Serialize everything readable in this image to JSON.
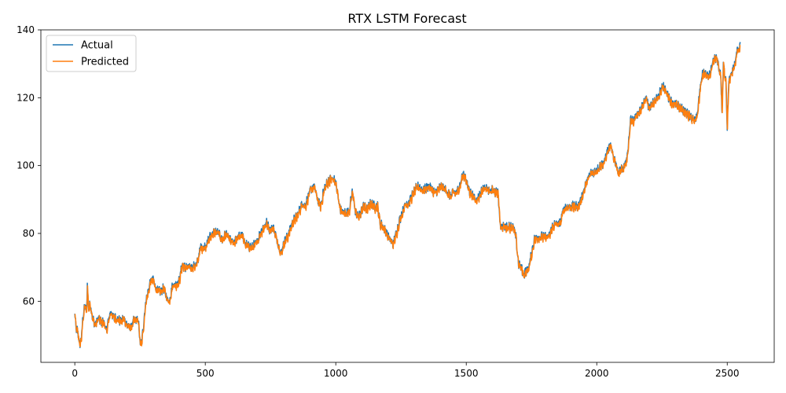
{
  "chart_data": {
    "type": "line",
    "title": "RTX LSTM Forecast",
    "xlabel": "",
    "ylabel": "",
    "xlim": [
      -130,
      2680
    ],
    "ylim": [
      42,
      140
    ],
    "xticks": [
      0,
      500,
      1000,
      1500,
      2000,
      2500
    ],
    "yticks": [
      60,
      80,
      100,
      120,
      140
    ],
    "grid": false,
    "legend_position": "top-left",
    "keypoints": [
      [
        0,
        56
      ],
      [
        5,
        52
      ],
      [
        12,
        51
      ],
      [
        18,
        47
      ],
      [
        25,
        49
      ],
      [
        32,
        56
      ],
      [
        40,
        59
      ],
      [
        45,
        56
      ],
      [
        48,
        65.5
      ],
      [
        52,
        58
      ],
      [
        60,
        59
      ],
      [
        68,
        55
      ],
      [
        78,
        53
      ],
      [
        90,
        55
      ],
      [
        100,
        54
      ],
      [
        112,
        54
      ],
      [
        120,
        51
      ],
      [
        128,
        54
      ],
      [
        138,
        57
      ],
      [
        150,
        55
      ],
      [
        162,
        55
      ],
      [
        175,
        54
      ],
      [
        188,
        55
      ],
      [
        200,
        53
      ],
      [
        212,
        52
      ],
      [
        225,
        54
      ],
      [
        238,
        55
      ],
      [
        245,
        53
      ],
      [
        250,
        48
      ],
      [
        255,
        47
      ],
      [
        262,
        52
      ],
      [
        272,
        60
      ],
      [
        282,
        63
      ],
      [
        290,
        66
      ],
      [
        300,
        66.5
      ],
      [
        310,
        64
      ],
      [
        318,
        63
      ],
      [
        330,
        63
      ],
      [
        340,
        64
      ],
      [
        352,
        61
      ],
      [
        362,
        60
      ],
      [
        375,
        65
      ],
      [
        388,
        65
      ],
      [
        400,
        66
      ],
      [
        412,
        71
      ],
      [
        420,
        70
      ],
      [
        435,
        70
      ],
      [
        450,
        70
      ],
      [
        468,
        71
      ],
      [
        482,
        76
      ],
      [
        498,
        76
      ],
      [
        512,
        78
      ],
      [
        525,
        80
      ],
      [
        540,
        80.5
      ],
      [
        552,
        80
      ],
      [
        565,
        78
      ],
      [
        580,
        80
      ],
      [
        595,
        78
      ],
      [
        610,
        77
      ],
      [
        625,
        79
      ],
      [
        640,
        80
      ],
      [
        652,
        77
      ],
      [
        665,
        76
      ],
      [
        680,
        76
      ],
      [
        695,
        77
      ],
      [
        710,
        80
      ],
      [
        725,
        82
      ],
      [
        735,
        83
      ],
      [
        748,
        81
      ],
      [
        760,
        82
      ],
      [
        775,
        78
      ],
      [
        790,
        74
      ],
      [
        800,
        77
      ],
      [
        815,
        79
      ],
      [
        828,
        82
      ],
      [
        840,
        84
      ],
      [
        852,
        85
      ],
      [
        862,
        87
      ],
      [
        872,
        89
      ],
      [
        882,
        88
      ],
      [
        895,
        91
      ],
      [
        905,
        93
      ],
      [
        918,
        94
      ],
      [
        930,
        90
      ],
      [
        942,
        88
      ],
      [
        955,
        93
      ],
      [
        968,
        95
      ],
      [
        980,
        96
      ],
      [
        992,
        96
      ],
      [
        1000,
        95
      ],
      [
        1008,
        91
      ],
      [
        1018,
        87
      ],
      [
        1028,
        86
      ],
      [
        1040,
        86
      ],
      [
        1052,
        87
      ],
      [
        1062,
        92
      ],
      [
        1068,
        91
      ],
      [
        1075,
        86
      ],
      [
        1085,
        85
      ],
      [
        1095,
        86
      ],
      [
        1105,
        88
      ],
      [
        1120,
        87
      ],
      [
        1135,
        89
      ],
      [
        1148,
        88
      ],
      [
        1160,
        88
      ],
      [
        1170,
        83
      ],
      [
        1180,
        82
      ],
      [
        1190,
        81
      ],
      [
        1200,
        79
      ],
      [
        1210,
        78
      ],
      [
        1220,
        77
      ],
      [
        1232,
        80
      ],
      [
        1245,
        84
      ],
      [
        1258,
        87
      ],
      [
        1268,
        89
      ],
      [
        1280,
        89
      ],
      [
        1292,
        91
      ],
      [
        1305,
        93
      ],
      [
        1318,
        94
      ],
      [
        1330,
        93
      ],
      [
        1342,
        93
      ],
      [
        1355,
        94
      ],
      [
        1368,
        93
      ],
      [
        1380,
        92
      ],
      [
        1392,
        93
      ],
      [
        1405,
        94
      ],
      [
        1418,
        93
      ],
      [
        1430,
        92
      ],
      [
        1440,
        91
      ],
      [
        1450,
        92
      ],
      [
        1462,
        92
      ],
      [
        1475,
        94
      ],
      [
        1485,
        97
      ],
      [
        1495,
        97
      ],
      [
        1505,
        94
      ],
      [
        1515,
        92
      ],
      [
        1525,
        91
      ],
      [
        1538,
        90
      ],
      [
        1550,
        91
      ],
      [
        1562,
        93
      ],
      [
        1575,
        94
      ],
      [
        1588,
        92
      ],
      [
        1600,
        93
      ],
      [
        1612,
        92
      ],
      [
        1622,
        92
      ],
      [
        1628,
        84
      ],
      [
        1634,
        82
      ],
      [
        1645,
        82
      ],
      [
        1658,
        82
      ],
      [
        1670,
        82
      ],
      [
        1680,
        82
      ],
      [
        1690,
        79
      ],
      [
        1700,
        71
      ],
      [
        1710,
        70
      ],
      [
        1720,
        68
      ],
      [
        1730,
        69
      ],
      [
        1740,
        70
      ],
      [
        1750,
        74
      ],
      [
        1760,
        78
      ],
      [
        1770,
        79
      ],
      [
        1785,
        79
      ],
      [
        1800,
        79
      ],
      [
        1815,
        79
      ],
      [
        1830,
        82
      ],
      [
        1845,
        83
      ],
      [
        1860,
        83
      ],
      [
        1872,
        87
      ],
      [
        1885,
        88
      ],
      [
        1900,
        88
      ],
      [
        1915,
        88
      ],
      [
        1928,
        88
      ],
      [
        1940,
        90
      ],
      [
        1952,
        93
      ],
      [
        1965,
        96
      ],
      [
        1978,
        98
      ],
      [
        1990,
        98
      ],
      [
        2002,
        99
      ],
      [
        2015,
        100
      ],
      [
        2028,
        101
      ],
      [
        2040,
        104
      ],
      [
        2052,
        106
      ],
      [
        2062,
        103
      ],
      [
        2072,
        101
      ],
      [
        2082,
        98
      ],
      [
        2092,
        99
      ],
      [
        2102,
        99
      ],
      [
        2112,
        101
      ],
      [
        2120,
        104
      ],
      [
        2125,
        110
      ],
      [
        2130,
        114
      ],
      [
        2140,
        113
      ],
      [
        2152,
        115
      ],
      [
        2165,
        116
      ],
      [
        2178,
        118
      ],
      [
        2190,
        120
      ],
      [
        2200,
        117
      ],
      [
        2212,
        118
      ],
      [
        2225,
        119
      ],
      [
        2238,
        121
      ],
      [
        2250,
        123
      ],
      [
        2262,
        123
      ],
      [
        2275,
        120
      ],
      [
        2290,
        118
      ],
      [
        2305,
        118
      ],
      [
        2320,
        117
      ],
      [
        2335,
        116
      ],
      [
        2350,
        115
      ],
      [
        2365,
        114
      ],
      [
        2375,
        113
      ],
      [
        2385,
        115
      ],
      [
        2395,
        122
      ],
      [
        2405,
        127
      ],
      [
        2415,
        127
      ],
      [
        2425,
        126
      ],
      [
        2435,
        127
      ],
      [
        2445,
        130
      ],
      [
        2455,
        132
      ],
      [
        2462,
        131
      ],
      [
        2470,
        128
      ],
      [
        2475,
        127
      ],
      [
        2480,
        115
      ],
      [
        2485,
        130
      ],
      [
        2490,
        127
      ],
      [
        2495,
        125
      ],
      [
        2500,
        111
      ],
      [
        2505,
        124
      ],
      [
        2512,
        126
      ],
      [
        2520,
        128
      ],
      [
        2530,
        130
      ],
      [
        2540,
        135
      ],
      [
        2545,
        134
      ],
      [
        2550,
        136
      ]
    ],
    "series": [
      {
        "name": "Actual",
        "color": "#1f77b4"
      },
      {
        "name": "Predicted",
        "color": "#ff7f0e"
      }
    ]
  }
}
